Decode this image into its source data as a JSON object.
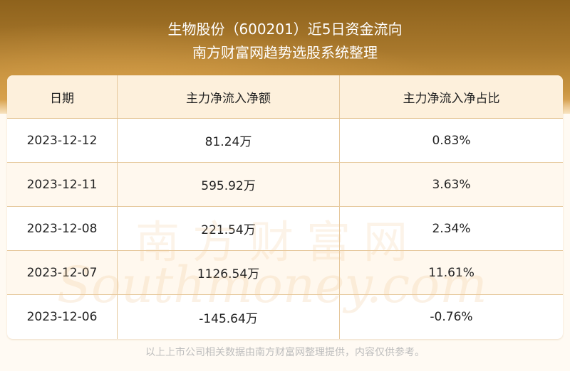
{
  "header": {
    "title": "生物股份（600201）近5日资金流向",
    "subtitle": "南方财富网趋势选股系统整理"
  },
  "table": {
    "columns": [
      "日期",
      "主力净流入净额",
      "主力净流入净占比"
    ],
    "rows": [
      [
        "2023-12-12",
        "81.24万",
        "0.83%"
      ],
      [
        "2023-12-11",
        "595.92万",
        "3.63%"
      ],
      [
        "2023-12-08",
        "221.54万",
        "2.34%"
      ],
      [
        "2023-12-07",
        "1126.54万",
        "11.61%"
      ],
      [
        "2023-12-06",
        "-145.64万",
        "-0.76%"
      ]
    ]
  },
  "watermark": {
    "cn": "南方财富网",
    "en": "Southmoney.com"
  },
  "footer": "以上上市公司相关数据由南方财富网整理提供，内容仅供参考。"
}
